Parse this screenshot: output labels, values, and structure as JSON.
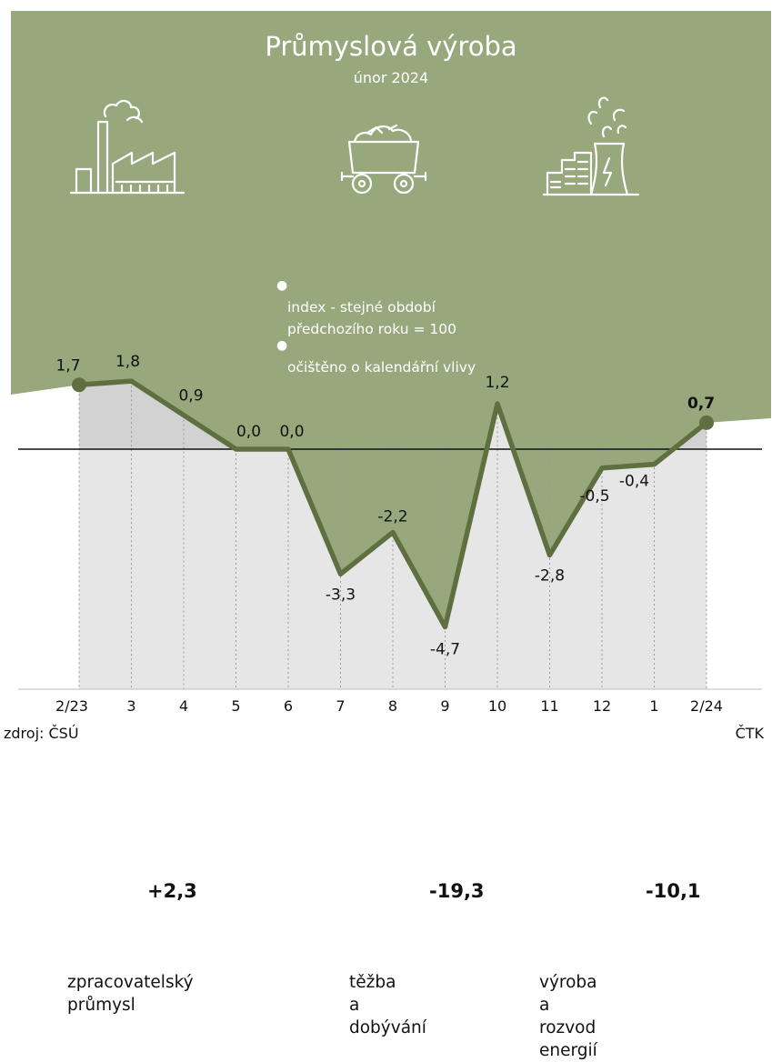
{
  "colors": {
    "band_green": "#97a87d",
    "line_green": "#5f7040",
    "gray_fill": "#e6e6e6",
    "dark_gray_fill": "#d2d2d2"
  },
  "header": {
    "title": "Průmyslová výroba",
    "subtitle": "únor 2024"
  },
  "sectors": [
    {
      "icon": "factory-icon",
      "value": "+2,3",
      "label": "zpracovatelský\nprůmysl"
    },
    {
      "icon": "mine-cart-icon",
      "value": "-19,3",
      "label": "těžba\na dobývání"
    },
    {
      "icon": "power-plant-icon",
      "value": "-10,1",
      "label": "výroba a rozvod\nenergií"
    }
  ],
  "notes": [
    "index - stejné období\npředchozího roku = 100",
    "očištěno o kalendářní vlivy"
  ],
  "chart_data": {
    "type": "line",
    "categories": [
      "2/23",
      "3",
      "4",
      "5",
      "6",
      "7",
      "8",
      "9",
      "10",
      "11",
      "12",
      "1",
      "2/24"
    ],
    "values": [
      1.7,
      1.8,
      0.9,
      0.0,
      0.0,
      -3.3,
      -2.2,
      -4.7,
      1.2,
      -2.8,
      -0.5,
      -0.4,
      0.7
    ],
    "value_labels": [
      "1,7",
      "1,8",
      "0,9",
      "0,0",
      "0,0",
      "-3,3",
      "-2,2",
      "-4,7",
      "1,2",
      "-2,8",
      "-0,5",
      "-0,4",
      "0,7"
    ],
    "ylim": [
      -4.7,
      1.8
    ],
    "baseline": 0,
    "grid": "vertical-dotted",
    "highlight_last": true
  },
  "footer": {
    "source": "zdroj: ČSÚ",
    "credit": "ČTK"
  }
}
